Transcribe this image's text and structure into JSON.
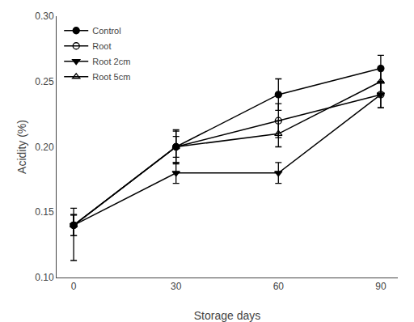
{
  "chart_data": {
    "type": "line",
    "x": [
      0,
      30,
      60,
      90
    ],
    "series": [
      {
        "name": "Control",
        "color": "black",
        "marker": "circle",
        "values": [
          0.14,
          0.2,
          0.24,
          0.26
        ],
        "yerr_lo": [
          0.027,
          0.012,
          0.012,
          0.01
        ],
        "yerr_hi": [
          0.013,
          0.012,
          0.012,
          0.01
        ]
      },
      {
        "name": "Root",
        "color": "black",
        "marker": "circle-open",
        "values": [
          0.14,
          0.2,
          0.22,
          0.24
        ],
        "yerr_lo": [
          0.008,
          0.013,
          0.013,
          0.01
        ],
        "yerr_hi": [
          0.008,
          0.013,
          0.013,
          0.01
        ]
      },
      {
        "name": "Root 2cm",
        "color": "black",
        "marker": "triangle-down",
        "values": [
          0.14,
          0.18,
          0.18,
          0.24
        ],
        "yerr_lo": [
          0.008,
          0.008,
          0.008,
          0.01
        ],
        "yerr_hi": [
          0.008,
          0.008,
          0.008,
          0.01
        ]
      },
      {
        "name": "Root 5cm",
        "color": "black",
        "marker": "triangle-up-open",
        "values": [
          0.14,
          0.2,
          0.21,
          0.25
        ],
        "yerr_lo": [
          0.008,
          0.008,
          0.01,
          0.01
        ],
        "yerr_hi": [
          0.008,
          0.008,
          0.01,
          0.01
        ]
      }
    ],
    "xlabel": "Storage days",
    "ylabel": "Acidity (%)",
    "xlim": [
      -5,
      95
    ],
    "xticks": [
      0,
      30,
      60,
      90
    ],
    "ylim": [
      0.1,
      0.3
    ],
    "yticks": [
      {
        "value": 0.1,
        "label": "0.10"
      },
      0.15,
      {
        "value": 0.2,
        "label": "0.20"
      },
      0.25,
      {
        "value": 0.3,
        "label": "0.30"
      }
    ],
    "grid": false,
    "legend": "upper left"
  }
}
